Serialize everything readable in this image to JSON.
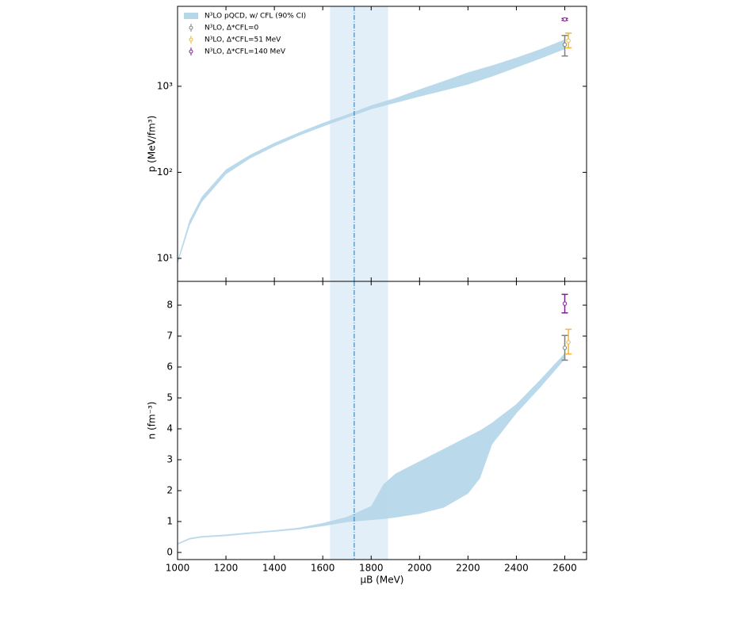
{
  "chart_data": [
    {
      "type": "area",
      "log_y": true,
      "ylabel": "p (MeV/fm³)",
      "xlim": [
        1000,
        2690
      ],
      "ylim": [
        5.4,
        8500
      ],
      "xticks": [
        1000,
        1200,
        1400,
        1600,
        1800,
        2000,
        2200,
        2400,
        2600
      ],
      "yticks": [
        {
          "value": 10,
          "label": "10¹"
        },
        {
          "value": 100,
          "label": "10²"
        },
        {
          "value": 1000,
          "label": "10³"
        }
      ],
      "vspan": [
        1630,
        1870
      ],
      "vline": 1730,
      "span_color": "#e3eff8",
      "vline_color": "#1f77b4",
      "band": {
        "name": "N³LO pQCD, w/ CFL (90% CI)",
        "color": "#b6d7ea",
        "x": [
          1000,
          1050,
          1100,
          1200,
          1300,
          1400,
          1500,
          1600,
          1700,
          1800,
          1900,
          2000,
          2100,
          2200,
          2300,
          2400,
          2500,
          2600
        ],
        "lower": [
          8.5,
          24,
          45,
          95,
          145,
          200,
          265,
          340,
          430,
          540,
          640,
          760,
          890,
          1050,
          1300,
          1650,
          2100,
          2700
        ],
        "upper": [
          9.5,
          28,
          52,
          108,
          160,
          220,
          290,
          375,
          470,
          600,
          730,
          920,
          1150,
          1450,
          1750,
          2150,
          2700,
          3500
        ]
      },
      "points": [
        {
          "name": "N³LO, Δ*CFL=0",
          "color": "#808080",
          "x": 2600,
          "value": 3050,
          "low": 2250,
          "high": 3900
        },
        {
          "name": "N³LO, Δ*CFL=51 MeV",
          "color": "#f5b731",
          "x": 2615,
          "value": 3400,
          "low": 2800,
          "high": 4150
        },
        {
          "name": "N³LO, Δ*CFL=140 MeV",
          "color": "#7b1f8e",
          "x": 2600,
          "value": 6000,
          "low": 5850,
          "high": 6150
        }
      ]
    },
    {
      "type": "area",
      "log_y": false,
      "ylabel": "n (fm⁻³)",
      "xlabel": "μB (MeV)",
      "xlim": [
        1000,
        2690
      ],
      "ylim": [
        -0.23,
        8.77
      ],
      "xticks": [
        1000,
        1200,
        1400,
        1600,
        1800,
        2000,
        2200,
        2400,
        2600
      ],
      "yticks": [
        0,
        1,
        2,
        3,
        4,
        5,
        6,
        7,
        8
      ],
      "vspan": [
        1630,
        1870
      ],
      "vline": 1730,
      "span_color": "#e3eff8",
      "vline_color": "#1f77b4",
      "band": {
        "color": "#b6d7ea",
        "x": [
          1000,
          1050,
          1100,
          1200,
          1300,
          1400,
          1500,
          1600,
          1700,
          1800,
          1850,
          1900,
          2000,
          2100,
          2200,
          2250,
          2300,
          2400,
          2500,
          2600
        ],
        "lower": [
          0.25,
          0.42,
          0.48,
          0.53,
          0.6,
          0.67,
          0.74,
          0.85,
          0.98,
          1.05,
          1.08,
          1.13,
          1.25,
          1.45,
          1.9,
          2.4,
          3.5,
          4.5,
          5.35,
          6.25
        ],
        "upper": [
          0.3,
          0.47,
          0.53,
          0.58,
          0.65,
          0.72,
          0.8,
          0.95,
          1.15,
          1.5,
          2.2,
          2.55,
          2.95,
          3.35,
          3.75,
          3.95,
          4.2,
          4.8,
          5.6,
          6.45
        ]
      },
      "points": [
        {
          "color": "#808080",
          "x": 2600,
          "value": 6.62,
          "low": 6.22,
          "high": 7.02
        },
        {
          "color": "#f5b731",
          "x": 2615,
          "value": 6.8,
          "low": 6.42,
          "high": 7.22
        },
        {
          "color": "#7b1f8e",
          "x": 2600,
          "value": 8.05,
          "low": 7.75,
          "high": 8.35
        }
      ]
    }
  ]
}
